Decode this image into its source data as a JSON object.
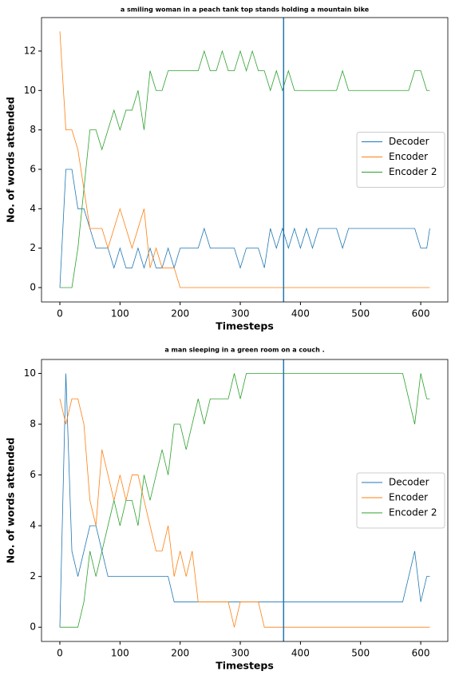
{
  "chart_data": [
    {
      "type": "line",
      "title": "a smiling woman in a peach tank top stands holding a mountain bike",
      "x_label": "Timesteps",
      "y_label": "No. of words attended",
      "x": [
        0,
        10,
        20,
        30,
        40,
        50,
        60,
        70,
        80,
        90,
        100,
        110,
        120,
        130,
        140,
        150,
        160,
        170,
        180,
        190,
        200,
        210,
        220,
        230,
        240,
        250,
        260,
        270,
        280,
        290,
        300,
        310,
        320,
        330,
        340,
        350,
        360,
        370,
        380,
        390,
        400,
        410,
        420,
        430,
        440,
        450,
        460,
        470,
        480,
        490,
        500,
        510,
        520,
        530,
        540,
        550,
        560,
        570,
        580,
        590,
        600,
        610,
        615
      ],
      "series": [
        {
          "name": "Decoder",
          "color": "#1f77b4",
          "values": [
            0,
            6,
            6,
            4,
            4,
            3,
            2,
            2,
            2,
            1,
            2,
            1,
            1,
            2,
            1,
            2,
            1,
            1,
            2,
            1,
            2,
            2,
            2,
            2,
            3,
            2,
            2,
            2,
            2,
            2,
            1,
            2,
            2,
            2,
            1,
            3,
            2,
            3,
            2,
            3,
            2,
            3,
            2,
            3,
            3,
            3,
            3,
            2,
            3,
            3,
            3,
            3,
            3,
            3,
            3,
            3,
            3,
            3,
            3,
            3,
            2,
            2,
            3
          ]
        },
        {
          "name": "Encoder",
          "color": "#ff7f0e",
          "values": [
            13,
            8,
            8,
            7,
            5,
            3,
            3,
            3,
            2,
            3,
            4,
            3,
            2,
            3,
            4,
            1,
            2,
            1,
            1,
            1,
            0,
            0,
            0,
            0,
            0,
            0,
            0,
            0,
            0,
            0,
            0,
            0,
            0,
            0,
            0,
            0,
            0,
            0,
            0,
            0,
            0,
            0,
            0,
            0,
            0,
            0,
            0,
            0,
            0,
            0,
            0,
            0,
            0,
            0,
            0,
            0,
            0,
            0,
            0,
            0,
            0,
            0,
            0
          ]
        },
        {
          "name": "Encoder 2",
          "color": "#2ca02c",
          "values": [
            0,
            0,
            0,
            2,
            5,
            8,
            8,
            7,
            8,
            9,
            8,
            9,
            9,
            10,
            8,
            11,
            10,
            10,
            11,
            11,
            11,
            11,
            11,
            11,
            12,
            11,
            11,
            12,
            11,
            11,
            12,
            11,
            12,
            11,
            11,
            10,
            11,
            10,
            11,
            10,
            10,
            10,
            10,
            10,
            10,
            10,
            10,
            11,
            10,
            10,
            10,
            10,
            10,
            10,
            10,
            10,
            10,
            10,
            10,
            11,
            11,
            10,
            10
          ]
        }
      ],
      "vline": 372,
      "vline_color": "#1f77b4",
      "xlim": [
        -30.5,
        645
      ],
      "xticks": [
        0,
        100,
        200,
        300,
        400,
        500,
        600
      ],
      "ylim": [
        -0.73,
        13.7
      ],
      "yticks": [
        0,
        2,
        4,
        6,
        8,
        10,
        12
      ],
      "legend": "center right"
    },
    {
      "type": "line",
      "title": "a man sleeping in a green room on a couch .",
      "x_label": "Timesteps",
      "y_label": "No. of words attended",
      "x": [
        0,
        10,
        20,
        30,
        40,
        50,
        60,
        70,
        80,
        90,
        100,
        110,
        120,
        130,
        140,
        150,
        160,
        170,
        180,
        190,
        200,
        210,
        220,
        230,
        240,
        250,
        260,
        270,
        280,
        290,
        300,
        310,
        320,
        330,
        340,
        350,
        360,
        370,
        380,
        390,
        400,
        410,
        420,
        430,
        440,
        450,
        460,
        470,
        480,
        490,
        500,
        510,
        520,
        530,
        540,
        550,
        560,
        570,
        580,
        590,
        600,
        610,
        615
      ],
      "series": [
        {
          "name": "Decoder",
          "color": "#1f77b4",
          "values": [
            0,
            10,
            3,
            2,
            3,
            4,
            4,
            3,
            2,
            2,
            2,
            2,
            2,
            2,
            2,
            2,
            2,
            2,
            2,
            1,
            1,
            1,
            1,
            1,
            1,
            1,
            1,
            1,
            1,
            1,
            1,
            1,
            1,
            1,
            1,
            1,
            1,
            1,
            1,
            1,
            1,
            1,
            1,
            1,
            1,
            1,
            1,
            1,
            1,
            1,
            1,
            1,
            1,
            1,
            1,
            1,
            1,
            1,
            2,
            3,
            1,
            2,
            2
          ]
        },
        {
          "name": "Encoder",
          "color": "#ff7f0e",
          "values": [
            9,
            8,
            9,
            9,
            8,
            5,
            4,
            7,
            6,
            5,
            6,
            5,
            6,
            6,
            5,
            4,
            3,
            3,
            4,
            2,
            3,
            2,
            3,
            1,
            1,
            1,
            1,
            1,
            1,
            0,
            1,
            1,
            1,
            1,
            0,
            0,
            0,
            0,
            0,
            0,
            0,
            0,
            0,
            0,
            0,
            0,
            0,
            0,
            0,
            0,
            0,
            0,
            0,
            0,
            0,
            0,
            0,
            0,
            0,
            0,
            0,
            0,
            0
          ]
        },
        {
          "name": "Encoder 2",
          "color": "#2ca02c",
          "values": [
            0,
            0,
            0,
            0,
            1,
            3,
            2,
            3,
            4,
            5,
            4,
            5,
            5,
            4,
            6,
            5,
            6,
            7,
            6,
            8,
            8,
            7,
            8,
            9,
            8,
            9,
            9,
            9,
            9,
            10,
            9,
            10,
            10,
            10,
            10,
            10,
            10,
            10,
            10,
            10,
            10,
            10,
            10,
            10,
            10,
            10,
            10,
            10,
            10,
            10,
            10,
            10,
            10,
            10,
            10,
            10,
            10,
            10,
            9,
            8,
            10,
            9,
            9
          ]
        }
      ],
      "vline": 372,
      "vline_color": "#1f77b4",
      "xlim": [
        -30.5,
        645
      ],
      "xticks": [
        0,
        100,
        200,
        300,
        400,
        500,
        600
      ],
      "ylim": [
        -0.56,
        10.55
      ],
      "yticks": [
        0,
        2,
        4,
        6,
        8,
        10
      ],
      "legend": "center right"
    }
  ]
}
